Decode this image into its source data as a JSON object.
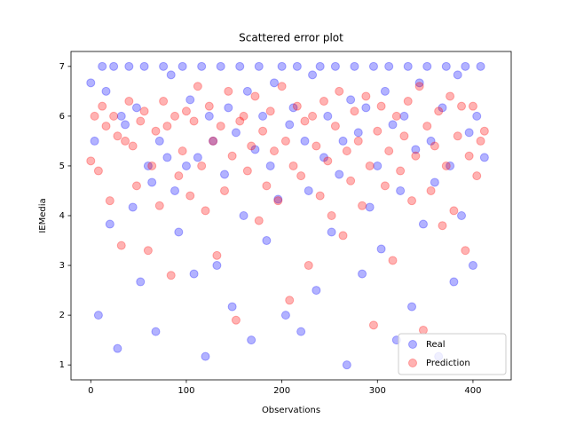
{
  "chart_data": {
    "type": "scatter",
    "title": "Scattered error plot",
    "x_label": "Observations",
    "y_label": "IEMedia",
    "xlim": [
      -20.7,
      440
    ],
    "ylim": [
      0.7,
      7.3
    ],
    "xticks": [
      0,
      100,
      200,
      300,
      400
    ],
    "yticks": [
      1,
      2,
      3,
      4,
      5,
      6,
      7
    ],
    "legend": "lower right",
    "x": [
      0,
      4,
      8,
      12,
      16,
      20,
      24,
      28,
      32,
      36,
      40,
      44,
      48,
      52,
      56,
      60,
      64,
      68,
      72,
      76,
      80,
      84,
      88,
      92,
      96,
      100,
      104,
      108,
      112,
      116,
      120,
      124,
      128,
      132,
      136,
      140,
      144,
      148,
      152,
      156,
      160,
      164,
      168,
      172,
      176,
      180,
      184,
      188,
      192,
      196,
      200,
      204,
      208,
      212,
      216,
      220,
      224,
      228,
      232,
      236,
      240,
      244,
      248,
      252,
      256,
      260,
      264,
      268,
      272,
      276,
      280,
      284,
      288,
      292,
      296,
      300,
      304,
      308,
      312,
      316,
      320,
      324,
      328,
      332,
      336,
      340,
      344,
      348,
      352,
      356,
      360,
      364,
      368,
      372,
      376,
      380,
      384,
      388,
      392,
      396,
      400,
      404,
      408,
      412
    ],
    "series": [
      {
        "name": "Real",
        "color": "#0000ff",
        "values": [
          6.67,
          5.5,
          2,
          7,
          6.5,
          3.83,
          7,
          1.33,
          6,
          5.83,
          7,
          4.17,
          6.17,
          2.67,
          7,
          5,
          4.67,
          1.67,
          5.5,
          7,
          5.17,
          6.83,
          4.5,
          3.67,
          7,
          5,
          6.33,
          2.83,
          5.17,
          7,
          1.17,
          6,
          5.5,
          3,
          7,
          4.83,
          6.17,
          2.17,
          5.67,
          7,
          4,
          6.5,
          1.5,
          5.33,
          7,
          6,
          3.5,
          5,
          6.67,
          4.33,
          7,
          2,
          5.83,
          6.17,
          7,
          1.67,
          5.5,
          4.5,
          6.83,
          2.5,
          7,
          5.17,
          6,
          3.67,
          7,
          4.83,
          5.5,
          1,
          6.33,
          7,
          5.67,
          2.83,
          6.17,
          4.17,
          7,
          5,
          3.33,
          6.5,
          7,
          5.83,
          1.5,
          4.5,
          6,
          7,
          2.17,
          5.33,
          6.67,
          3.83,
          7,
          5.5,
          4.67,
          1.17,
          6.17,
          7,
          5,
          2.67,
          6.83,
          4,
          7,
          5.67,
          3,
          6,
          7,
          5.17
        ]
      },
      {
        "name": "Prediction",
        "color": "#ff0000",
        "values": [
          5.1,
          6.0,
          4.9,
          6.2,
          5.8,
          4.3,
          6.0,
          5.6,
          3.4,
          5.5,
          6.3,
          5.4,
          4.6,
          5.9,
          6.1,
          3.3,
          5.0,
          5.7,
          4.2,
          6.3,
          5.8,
          2.8,
          6.0,
          4.8,
          5.3,
          6.1,
          4.4,
          5.9,
          6.6,
          5.0,
          4.1,
          6.2,
          5.5,
          3.2,
          5.8,
          4.5,
          6.5,
          5.2,
          1.9,
          5.9,
          6.0,
          4.9,
          5.4,
          6.4,
          3.9,
          5.7,
          4.6,
          6.1,
          5.3,
          4.3,
          6.6,
          5.5,
          2.3,
          5.0,
          6.2,
          4.8,
          5.9,
          3.0,
          6.0,
          5.4,
          4.4,
          6.3,
          5.1,
          4.0,
          5.8,
          6.5,
          3.6,
          5.3,
          4.7,
          6.1,
          5.5,
          4.2,
          6.4,
          5.0,
          1.8,
          5.7,
          6.2,
          4.6,
          5.3,
          3.1,
          6.0,
          4.9,
          5.6,
          6.3,
          4.3,
          5.2,
          6.6,
          1.7,
          5.8,
          4.5,
          5.4,
          6.1,
          3.8,
          5.0,
          6.4,
          4.1,
          5.6,
          6.2,
          3.3,
          5.2,
          6.2,
          4.8,
          5.5,
          5.7
        ]
      }
    ]
  }
}
